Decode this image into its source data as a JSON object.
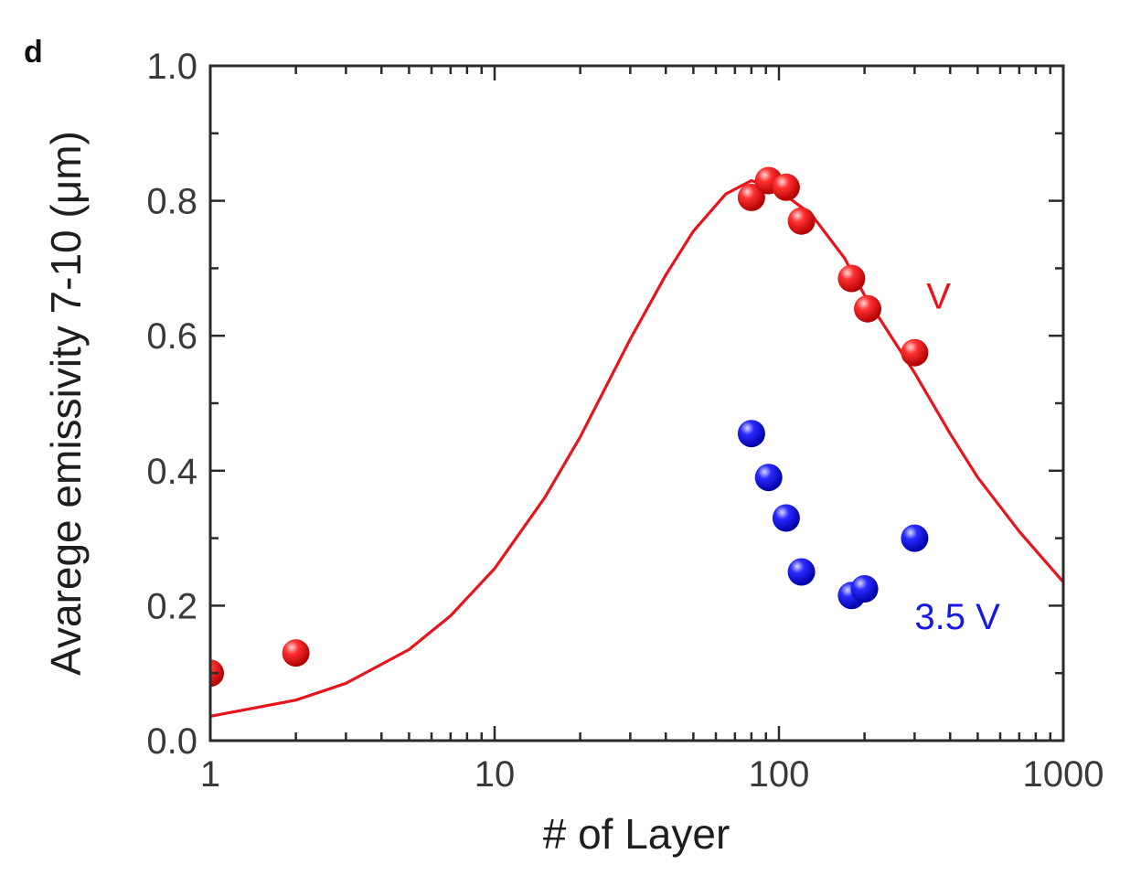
{
  "panel_label": "d",
  "chart_data": {
    "type": "scatter",
    "xlabel": "# of Layer",
    "ylabel": "Avarege emissivity 7-10 (μm)",
    "xscale": "log",
    "xlim": [
      1,
      1000
    ],
    "ylim": [
      0.0,
      1.0
    ],
    "x_ticks": [
      1,
      10,
      100,
      1000
    ],
    "x_tick_labels": [
      "1",
      "10",
      "100",
      "1000"
    ],
    "y_ticks": [
      0.0,
      0.2,
      0.4,
      0.6,
      0.8,
      1.0
    ],
    "y_tick_labels": [
      "0.0",
      "0.2",
      "0.4",
      "0.6",
      "0.8",
      "1.0"
    ],
    "grid": false,
    "series": [
      {
        "type": "scatter",
        "color": "#e8141b",
        "points": [
          {
            "x": 1,
            "y": 0.1
          },
          {
            "x": 2,
            "y": 0.13
          },
          {
            "x": 80,
            "y": 0.805
          },
          {
            "x": 92,
            "y": 0.83
          },
          {
            "x": 106,
            "y": 0.82
          },
          {
            "x": 120,
            "y": 0.77
          },
          {
            "x": 180,
            "y": 0.685
          },
          {
            "x": 205,
            "y": 0.64
          },
          {
            "x": 300,
            "y": 0.575
          }
        ]
      },
      {
        "type": "scatter",
        "color": "#1518e6",
        "points": [
          {
            "x": 80,
            "y": 0.455
          },
          {
            "x": 92,
            "y": 0.39
          },
          {
            "x": 106,
            "y": 0.33
          },
          {
            "x": 120,
            "y": 0.25
          },
          {
            "x": 180,
            "y": 0.215
          },
          {
            "x": 200,
            "y": 0.225
          },
          {
            "x": 300,
            "y": 0.3
          }
        ]
      },
      {
        "type": "line",
        "color": "#e8141b",
        "points": [
          {
            "x": 1,
            "y": 0.036
          },
          {
            "x": 2,
            "y": 0.06
          },
          {
            "x": 3,
            "y": 0.085
          },
          {
            "x": 5,
            "y": 0.135
          },
          {
            "x": 7,
            "y": 0.185
          },
          {
            "x": 10,
            "y": 0.255
          },
          {
            "x": 15,
            "y": 0.36
          },
          {
            "x": 20,
            "y": 0.45
          },
          {
            "x": 30,
            "y": 0.595
          },
          {
            "x": 40,
            "y": 0.69
          },
          {
            "x": 50,
            "y": 0.755
          },
          {
            "x": 65,
            "y": 0.81
          },
          {
            "x": 80,
            "y": 0.83
          },
          {
            "x": 100,
            "y": 0.815
          },
          {
            "x": 130,
            "y": 0.78
          },
          {
            "x": 170,
            "y": 0.715
          },
          {
            "x": 200,
            "y": 0.66
          },
          {
            "x": 300,
            "y": 0.545
          },
          {
            "x": 400,
            "y": 0.455
          },
          {
            "x": 500,
            "y": 0.39
          },
          {
            "x": 700,
            "y": 0.31
          },
          {
            "x": 1000,
            "y": 0.235
          }
        ]
      }
    ],
    "annotations": [
      {
        "text": "V",
        "x": 330,
        "y": 0.64,
        "color": "#e8141b"
      },
      {
        "text": "3.5 V",
        "x": 300,
        "y": 0.165,
        "color": "#1518e6"
      }
    ]
  }
}
